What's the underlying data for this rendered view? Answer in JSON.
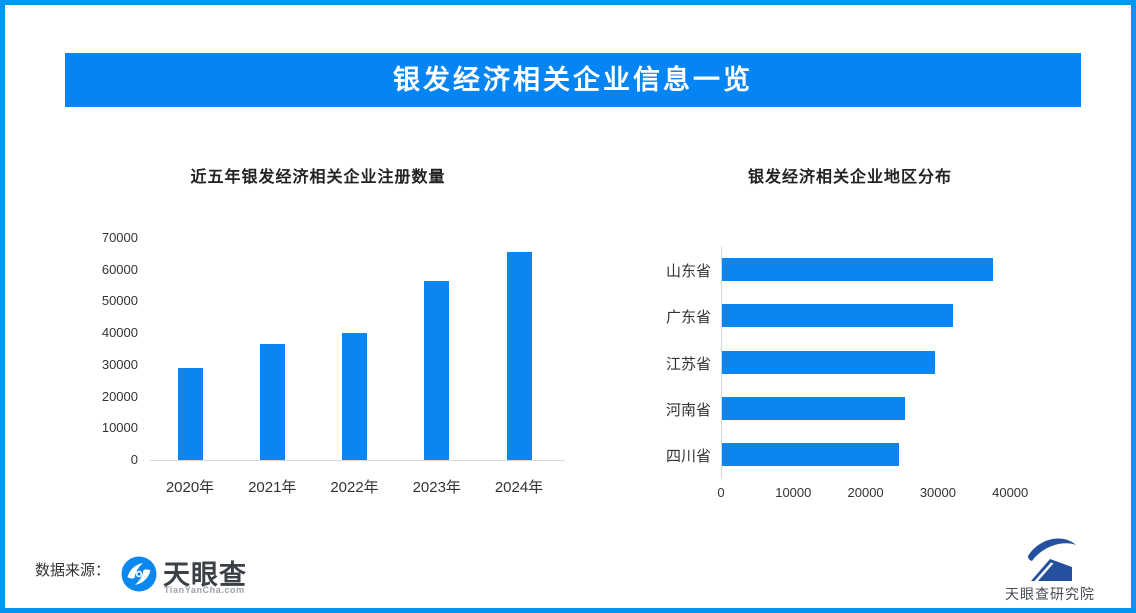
{
  "page": {
    "banner_title": "银发经济相关企业信息一览",
    "source_label": "数据来源：",
    "source_logo": {
      "name": "天眼查",
      "subtext": "TianYanCha.com"
    },
    "footer_logo_text": "天眼查研究院"
  },
  "colors": {
    "border": "#0795F2",
    "banner": "#0584F4",
    "bar": "#0A85F2",
    "axis": "#D9D9D9",
    "text_dark": "#333333",
    "logo_blue": "#0B87F0",
    "logo_navy": "#24509E"
  },
  "chart_data": [
    {
      "type": "bar",
      "orientation": "vertical",
      "title": "近五年银发经济相关企业注册数量",
      "categories": [
        "2020年",
        "2021年",
        "2022年",
        "2023年",
        "2024年"
      ],
      "values": [
        29000,
        36500,
        40000,
        56500,
        65500
      ],
      "xlabel": "",
      "ylabel": "",
      "ylim": [
        0,
        70000
      ],
      "yticks": [
        0,
        10000,
        20000,
        30000,
        40000,
        50000,
        60000,
        70000
      ],
      "grid": false,
      "legend": false,
      "bar_color": "#0A85F2"
    },
    {
      "type": "bar",
      "orientation": "horizontal",
      "title": "银发经济相关企业地区分布",
      "categories": [
        "山东省",
        "广东省",
        "江苏省",
        "河南省",
        "四川省"
      ],
      "values": [
        37500,
        32000,
        29500,
        25300,
        24500
      ],
      "xlabel": "",
      "ylabel": "",
      "xlim": [
        0,
        45000
      ],
      "xticks": [
        0,
        10000,
        20000,
        30000,
        40000
      ],
      "grid": false,
      "legend": false,
      "bar_color": "#0A85F2"
    }
  ]
}
